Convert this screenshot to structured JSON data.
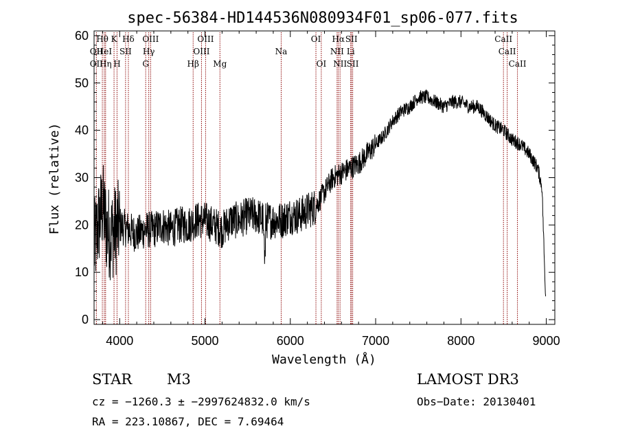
{
  "chart_data": {
    "type": "line",
    "title": "spec-56384-HD144536N080934F01_sp06-077.fits",
    "xlabel": "Wavelength (Å)",
    "ylabel": "Flux (relative)",
    "xlim": [
      3700,
      9100
    ],
    "ylim": [
      -1,
      61
    ],
    "xticks": [
      4000,
      5000,
      6000,
      7000,
      8000,
      9000
    ],
    "yticks": [
      0,
      10,
      20,
      30,
      40,
      50,
      60
    ],
    "grid": false,
    "line_color": "#000000",
    "marker_color": "#8b0000",
    "spectrum_anchors": {
      "x": [
        3700,
        3750,
        3800,
        3850,
        3900,
        4000,
        4100,
        4200,
        4300,
        4400,
        4500,
        4600,
        4700,
        4800,
        4900,
        5000,
        5100,
        5200,
        5300,
        5400,
        5500,
        5600,
        5700,
        5800,
        5900,
        6000,
        6100,
        6200,
        6300,
        6400,
        6500,
        6600,
        6700,
        6800,
        6900,
        7000,
        7100,
        7200,
        7300,
        7400,
        7500,
        7600,
        7700,
        7800,
        7900,
        8000,
        8100,
        8200,
        8300,
        8400,
        8500,
        8600,
        8700,
        8800,
        8900,
        8950,
        8990
      ],
      "y": [
        15,
        20,
        24,
        19,
        18,
        20,
        19,
        18,
        19,
        19,
        20,
        19,
        20,
        20,
        21,
        21,
        20,
        19,
        21,
        21,
        22,
        22,
        21,
        21,
        21,
        22,
        22,
        23,
        24,
        27,
        30,
        31,
        32,
        33,
        35,
        37,
        39,
        42,
        44,
        45,
        47,
        47,
        46,
        45,
        46,
        46,
        45,
        45,
        43,
        41,
        40,
        38,
        37,
        35,
        32,
        28,
        5
      ]
    },
    "lines": [
      {
        "name": "OII",
        "x": 3727,
        "row": 1
      },
      {
        "name": "OII",
        "x": 3727,
        "row": 2
      },
      {
        "name": "Hθ",
        "x": 3797,
        "row": 0
      },
      {
        "name": "HeI",
        "x": 3820,
        "row": 1
      },
      {
        "name": "Hη",
        "x": 3835,
        "row": 2
      },
      {
        "name": "K",
        "x": 3934,
        "row": 0
      },
      {
        "name": "SII",
        "x": 4069,
        "row": 1
      },
      {
        "name": "H",
        "x": 3969,
        "row": 2
      },
      {
        "name": "Hδ",
        "x": 4102,
        "row": 0
      },
      {
        "name": "OIII",
        "x": 4363,
        "row": 0
      },
      {
        "name": "Hγ",
        "x": 4341,
        "row": 1
      },
      {
        "name": "G",
        "x": 4305,
        "row": 2
      },
      {
        "name": "Hβ",
        "x": 4861,
        "row": 2
      },
      {
        "name": "OIII",
        "x": 5007,
        "row": 0
      },
      {
        "name": "OIII",
        "x": 4959,
        "row": 1
      },
      {
        "name": "Mg",
        "x": 5175,
        "row": 2
      },
      {
        "name": "Na",
        "x": 5893,
        "row": 1
      },
      {
        "name": "OI",
        "x": 6300,
        "row": 0
      },
      {
        "name": "OI",
        "x": 6363,
        "row": 2
      },
      {
        "name": "Hα",
        "x": 6563,
        "row": 0
      },
      {
        "name": "NII",
        "x": 6548,
        "row": 1
      },
      {
        "name": "NII",
        "x": 6583,
        "row": 2
      },
      {
        "name": "SII",
        "x": 6716,
        "row": 0
      },
      {
        "name": "Li",
        "x": 6708,
        "row": 1
      },
      {
        "name": "SII",
        "x": 6731,
        "row": 2
      },
      {
        "name": "CaII",
        "x": 8498,
        "row": 0
      },
      {
        "name": "CaII",
        "x": 8542,
        "row": 1
      },
      {
        "name": "CaII",
        "x": 8662,
        "row": 2
      }
    ]
  },
  "info": {
    "obj_type": "STAR",
    "subclass": "M3",
    "survey": "LAMOST DR3",
    "cz": "cz = −1260.3 ± −2997624832.0 km/s",
    "obs_date": "Obs−Date: 20130401",
    "radec": "RA = 223.10867, DEC =    7.69464"
  }
}
